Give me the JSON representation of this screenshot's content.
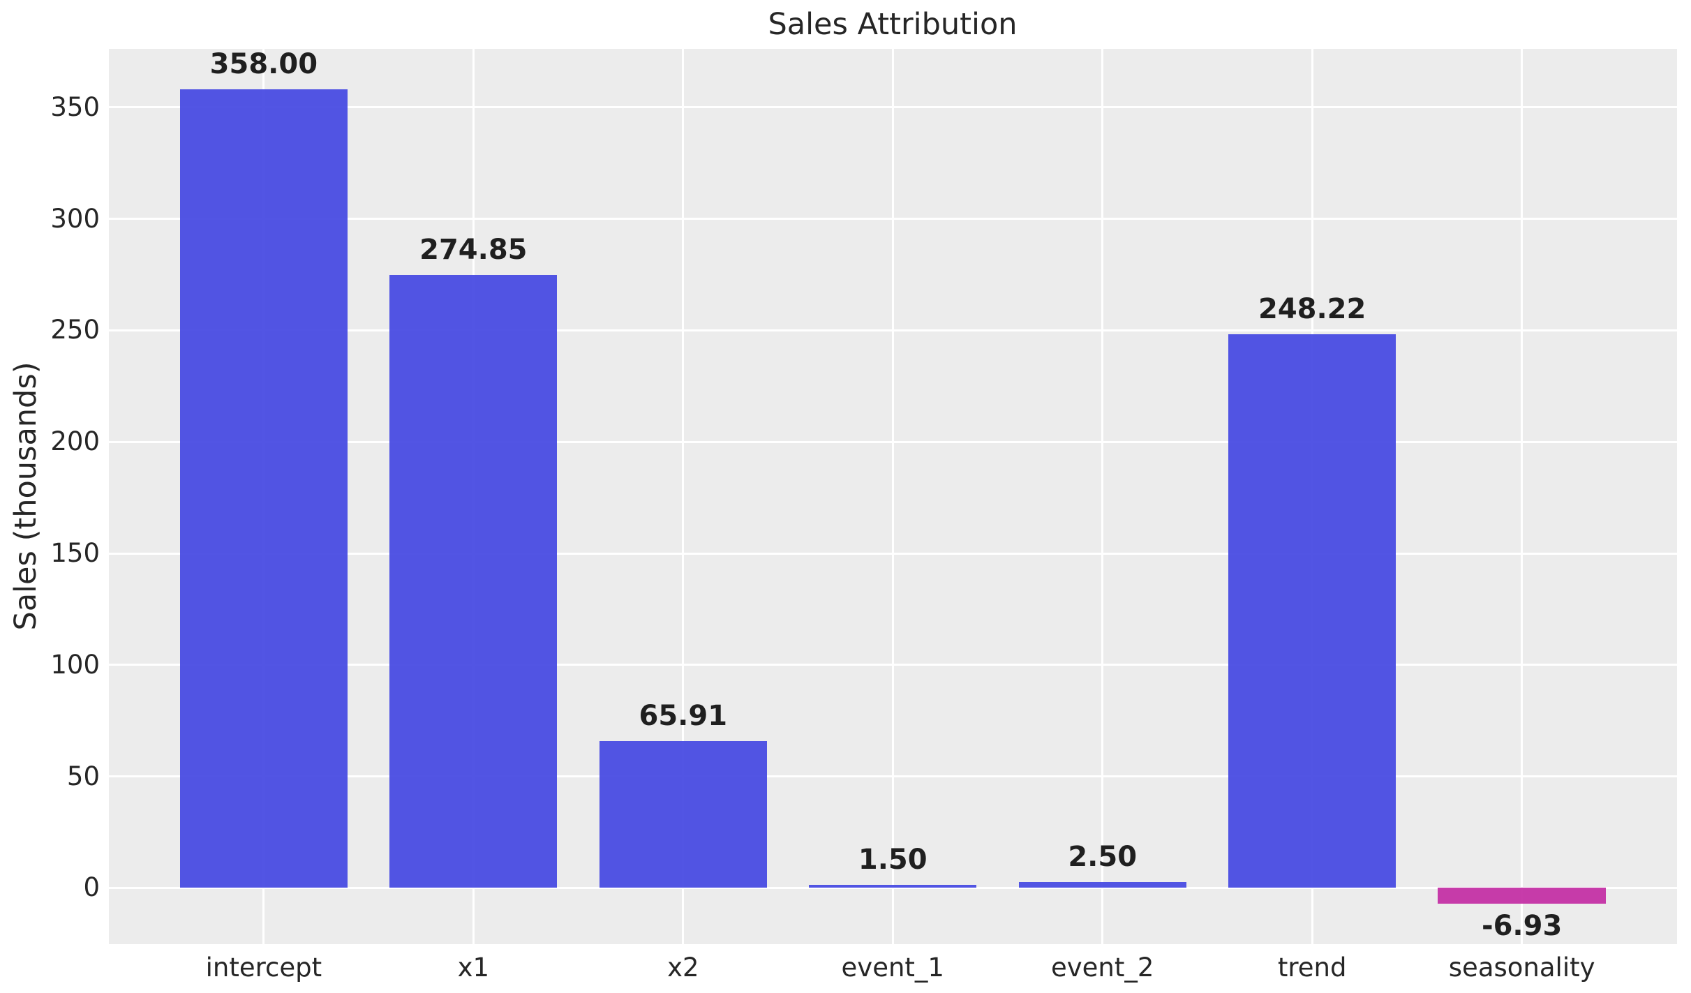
{
  "chart_data": {
    "type": "bar",
    "title": "Sales Attribution",
    "xlabel": "",
    "ylabel": "Sales (thousands)",
    "categories": [
      "intercept",
      "x1",
      "x2",
      "event_1",
      "event_2",
      "trend",
      "seasonality"
    ],
    "values": [
      358.0,
      274.85,
      65.91,
      1.5,
      2.5,
      248.22,
      -6.93
    ],
    "value_labels": [
      "358.00",
      "274.85",
      "65.91",
      "1.50",
      "2.50",
      "248.22",
      "-6.93"
    ],
    "yticks": [
      0,
      50,
      100,
      150,
      200,
      250,
      300,
      350
    ],
    "ytick_labels": [
      "0",
      "50",
      "100",
      "150",
      "200",
      "250",
      "300",
      "350"
    ],
    "ylim": [
      -25.2,
      376.2
    ],
    "xlim": [
      -0.74,
      6.74
    ],
    "grid": true,
    "legend": false,
    "colors": {
      "bar_positive": "#474AE2",
      "bar_negative": "#C430A5",
      "plot_background": "#ECECEC",
      "figure_background": "#FFFFFF",
      "gridline": "#FFFFFF",
      "text": "#262626"
    }
  }
}
